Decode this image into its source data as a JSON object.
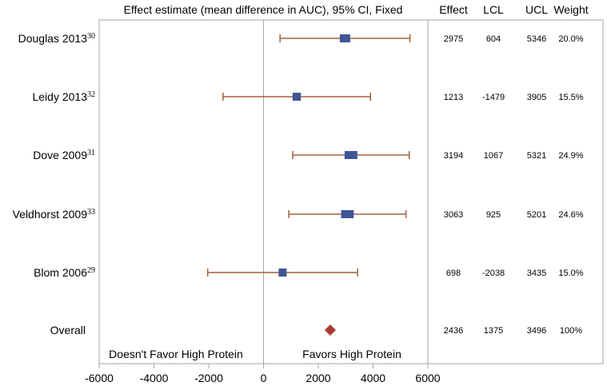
{
  "chart_data": {
    "type": "forest",
    "title": "Effect estimate (mean difference in AUC), 95% CI, Fixed",
    "column_headers": [
      "Effect",
      "LCL",
      "UCL",
      "Weight"
    ],
    "xlim": [
      -6000,
      6000
    ],
    "xticks": [
      "-6000",
      "-4000",
      "-2000",
      "0",
      "2000",
      "4000",
      "6000"
    ],
    "left_annotation": "Doesn't Favor High Protein",
    "right_annotation": "Favors High Protein",
    "studies": [
      {
        "label": "Douglas 2013",
        "ref": "30",
        "effect": 2975,
        "lcl": 604,
        "ucl": 5346,
        "weight": 20.0,
        "effect_text": "2975",
        "lcl_text": "604",
        "ucl_text": "5346",
        "weight_text": "20.0%"
      },
      {
        "label": "Leidy 2013",
        "ref": "32",
        "effect": 1213,
        "lcl": -1479,
        "ucl": 3905,
        "weight": 15.5,
        "effect_text": "1213",
        "lcl_text": "-1479",
        "ucl_text": "3905",
        "weight_text": "15.5%"
      },
      {
        "label": "Dove 2009",
        "ref": "31",
        "effect": 3194,
        "lcl": 1067,
        "ucl": 5321,
        "weight": 24.9,
        "effect_text": "3194",
        "lcl_text": "1067",
        "ucl_text": "5321",
        "weight_text": "24.9%"
      },
      {
        "label": "Veldhorst 2009",
        "ref": "33",
        "effect": 3063,
        "lcl": 925,
        "ucl": 5201,
        "weight": 24.6,
        "effect_text": "3063",
        "lcl_text": "925",
        "ucl_text": "5201",
        "weight_text": "24.6%"
      },
      {
        "label": "Blom 2006",
        "ref": "29",
        "effect": 698,
        "lcl": -2038,
        "ucl": 3435,
        "weight": 15.0,
        "effect_text": "698",
        "lcl_text": "-2038",
        "ucl_text": "3435",
        "weight_text": "15.0%"
      }
    ],
    "overall": {
      "label": "Overall",
      "effect": 2436,
      "lcl": 1375,
      "ucl": 3496,
      "weight": 100,
      "effect_text": "2436",
      "lcl_text": "1375",
      "ucl_text": "3496",
      "weight_text": "100%"
    },
    "colors": {
      "study_marker": "#3f5596",
      "overall_marker": "#a83c2e",
      "ci_line": "#a0613c",
      "frame": "#a6a6a6"
    }
  }
}
